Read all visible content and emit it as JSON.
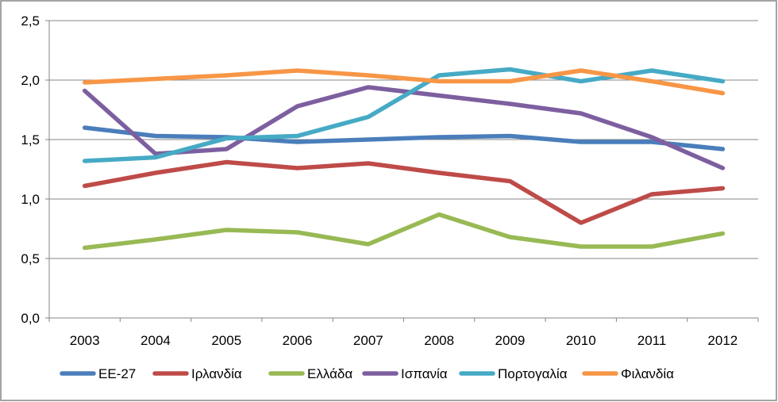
{
  "chart_data": {
    "type": "line",
    "title": "",
    "xlabel": "",
    "ylabel": "",
    "x": [
      "2003",
      "2004",
      "2005",
      "2006",
      "2007",
      "2008",
      "2009",
      "2010",
      "2011",
      "2012"
    ],
    "y_ticks": [
      "0,0",
      "0,5",
      "1,0",
      "1,5",
      "2,0",
      "2,5"
    ],
    "ylim": [
      0,
      2.5
    ],
    "grid": "horizontal",
    "legend_position": "bottom",
    "series": [
      {
        "name": "ΕΕ-27",
        "color": "#4A7EBB",
        "values": [
          1.6,
          1.53,
          1.52,
          1.48,
          1.5,
          1.52,
          1.53,
          1.48,
          1.48,
          1.42
        ]
      },
      {
        "name": "Ιρλανδία",
        "color": "#BE4B48",
        "values": [
          1.11,
          1.22,
          1.31,
          1.26,
          1.3,
          1.22,
          1.15,
          0.8,
          1.04,
          1.09
        ]
      },
      {
        "name": "Ελλάδα",
        "color": "#98B954",
        "values": [
          0.59,
          0.66,
          0.74,
          0.72,
          0.62,
          0.87,
          0.68,
          0.6,
          0.6,
          0.71
        ]
      },
      {
        "name": "Ισπανία",
        "color": "#7D5FA0",
        "values": [
          1.91,
          1.38,
          1.42,
          1.78,
          1.94,
          1.87,
          1.8,
          1.72,
          1.52,
          1.26
        ]
      },
      {
        "name": "Πορτογαλία",
        "color": "#46AAC5",
        "values": [
          1.32,
          1.35,
          1.51,
          1.53,
          1.69,
          2.04,
          2.09,
          1.99,
          2.08,
          1.99
        ]
      },
      {
        "name": "Φιλανδία",
        "color": "#F79646",
        "values": [
          1.98,
          2.01,
          2.04,
          2.08,
          2.04,
          1.99,
          1.99,
          2.08,
          1.99,
          1.89
        ]
      }
    ]
  }
}
